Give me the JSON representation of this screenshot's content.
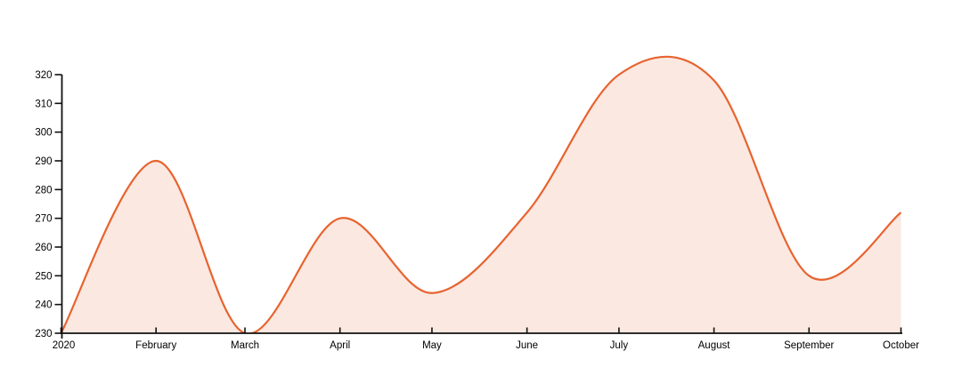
{
  "chart": {
    "background": "#ffffff",
    "line_color": "#e7632f",
    "fill_color": "rgba(231,99,47,0.15)",
    "axis_color": "#111111",
    "label_color": "#000000"
  },
  "chart_data": {
    "type": "area",
    "title": "",
    "xlabel": "",
    "ylabel": "",
    "grid": false,
    "legend": "none",
    "smoothing": "catmull-rom",
    "ylim": [
      230,
      320
    ],
    "clip_min": 230,
    "y_ticks": [
      230,
      240,
      250,
      260,
      270,
      280,
      290,
      300,
      310,
      320
    ],
    "x_tick_labels": [
      "2020",
      "February",
      "March",
      "April",
      "May",
      "June",
      "July",
      "August",
      "September",
      "October"
    ],
    "x_day_offsets": [
      0,
      31,
      60,
      91,
      121,
      152,
      182,
      213,
      244,
      274
    ],
    "points": [
      {
        "label": "2020",
        "value": 230
      },
      {
        "label": "February",
        "value": 290
      },
      {
        "label": "March",
        "value": 230
      },
      {
        "label": "April",
        "value": 270
      },
      {
        "label": "May",
        "value": 244
      },
      {
        "label": "June",
        "value": 272
      },
      {
        "label": "July",
        "value": 320
      },
      {
        "label": "August",
        "value": 318
      },
      {
        "label": "September",
        "value": 250
      },
      {
        "label": "October",
        "value": 272
      }
    ]
  }
}
